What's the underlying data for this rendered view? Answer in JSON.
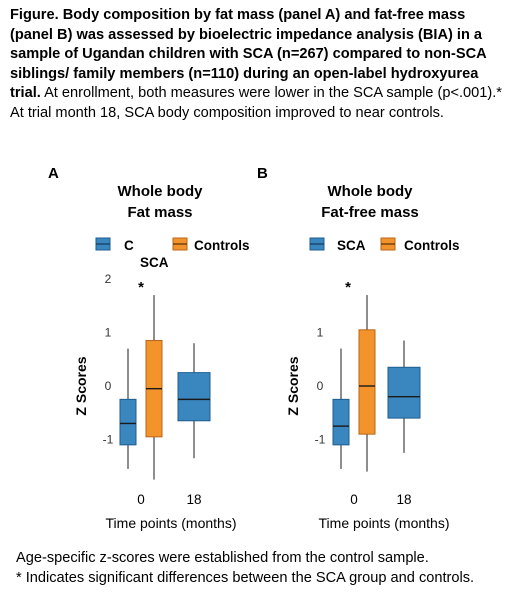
{
  "caption": {
    "bold": "Figure. Body composition by fat mass (panel A) and fat-free mass (panel B) was assessed by bioelectric impedance analysis (BIA) in a sample of Ugandan children with SCA (n=267) compared to non-SCA siblings/ family members (n=110) during an open-label hydroxyurea trial.",
    "normal": " At enrollment, both measures were lower in the SCA sample (p<.001).* At trial month 18, SCA body composition improved to near controls."
  },
  "footnote": {
    "line1": "Age-specific z-scores were established from the control sample.",
    "line2": "* Indicates significant differences between the SCA group and controls."
  },
  "colors": {
    "sca": "#3a87c0",
    "sca_edge": "#1d5d8f",
    "controls": "#f2932b",
    "controls_edge": "#b9651a",
    "whisker": "#444444"
  },
  "chart_data": [
    {
      "type": "box",
      "panel_label": "A",
      "title_line1": "Whole body",
      "title_line2": "Fat mass",
      "legend": {
        "sca": "C",
        "sca_extra": "SCA",
        "controls": "Controls"
      },
      "ylabel": "Z Scores",
      "xlabel": "Time points (months)",
      "yticks": [
        "2",
        "1",
        "0",
        "-1"
      ],
      "ytick_values": [
        2,
        1,
        0,
        -1
      ],
      "categories": [
        "0",
        "18"
      ],
      "ylim": [
        -1.75,
        2.2
      ],
      "significance": {
        "category": "0",
        "label": "*",
        "y": 1.85
      },
      "series": [
        {
          "name": "SCA",
          "boxes": [
            {
              "x": "0",
              "min": -1.55,
              "q1": -1.1,
              "median": -0.7,
              "q3": -0.25,
              "max": 0.7
            },
            {
              "x": "18",
              "min": -1.35,
              "q1": -0.65,
              "median": -0.25,
              "q3": 0.25,
              "max": 0.8
            }
          ]
        },
        {
          "name": "Controls",
          "boxes": [
            {
              "x": "0",
              "min": -1.75,
              "q1": -0.95,
              "median": -0.05,
              "q3": 0.85,
              "max": 1.7
            }
          ]
        }
      ]
    },
    {
      "type": "box",
      "panel_label": "B",
      "title_line1": "Whole body",
      "title_line2": "Fat-free mass",
      "legend": {
        "sca": "SCA",
        "sca_extra": "",
        "controls": "Controls"
      },
      "ylabel": "Z Scores",
      "xlabel": "Time points (months)",
      "yticks": [
        "1",
        "0",
        "-1"
      ],
      "ytick_values": [
        1,
        0,
        -1
      ],
      "categories": [
        "0",
        "18"
      ],
      "ylim": [
        -1.75,
        2.2
      ],
      "significance": {
        "category": "0",
        "label": "*",
        "y": 1.85
      },
      "series": [
        {
          "name": "SCA",
          "boxes": [
            {
              "x": "0",
              "min": -1.55,
              "q1": -1.1,
              "median": -0.75,
              "q3": -0.25,
              "max": 0.7
            },
            {
              "x": "18",
              "min": -1.25,
              "q1": -0.6,
              "median": -0.2,
              "q3": 0.35,
              "max": 0.85
            }
          ]
        },
        {
          "name": "Controls",
          "boxes": [
            {
              "x": "0",
              "min": -1.6,
              "q1": -0.9,
              "median": 0.0,
              "q3": 1.05,
              "max": 1.7
            }
          ]
        }
      ]
    }
  ]
}
